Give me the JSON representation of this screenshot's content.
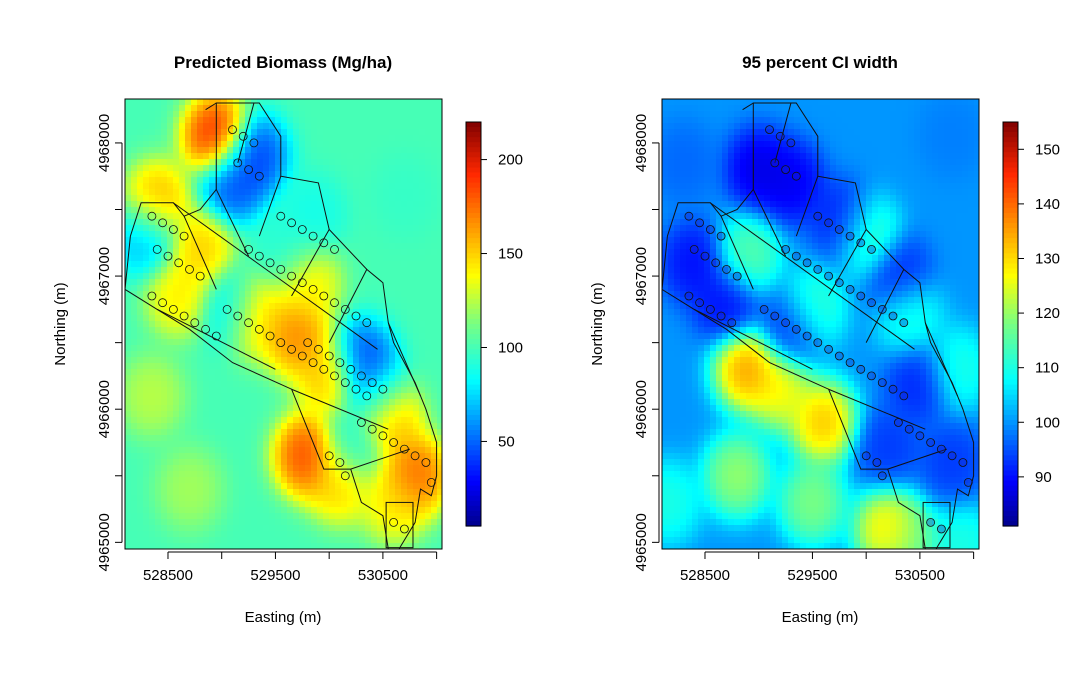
{
  "chart_data": [
    {
      "type": "heatmap",
      "title": "Predicted Biomass (Mg/ha)",
      "xlabel": "Easting (m)",
      "ylabel": "Northing (m)",
      "xlim": [
        528100,
        531050
      ],
      "ylim": [
        4964950,
        4968330
      ],
      "x_ticks": [
        528500,
        529000,
        529500,
        530000,
        530500,
        531000
      ],
      "x_tick_labels": [
        "528500",
        "",
        "529500",
        "",
        "530500",
        ""
      ],
      "y_ticks": [
        4965000,
        4965500,
        4966000,
        4966500,
        4967000,
        4967500,
        4968000
      ],
      "y_tick_labels": [
        "4965000",
        "",
        "4966000",
        "",
        "4967000",
        "",
        "4968000"
      ],
      "colorbar": {
        "range": [
          5,
          220
        ],
        "ticks": [
          50,
          100,
          150,
          200
        ],
        "tick_labels": [
          "50",
          "100",
          "150",
          "200"
        ]
      },
      "background_value": 100,
      "features": [
        {
          "x": 528950,
          "y": 4968050,
          "value": 210
        },
        {
          "x": 529300,
          "y": 4967900,
          "value": 30
        },
        {
          "x": 529100,
          "y": 4967700,
          "value": 35
        },
        {
          "x": 528400,
          "y": 4967550,
          "value": 170
        },
        {
          "x": 528300,
          "y": 4967300,
          "value": 60
        },
        {
          "x": 528800,
          "y": 4967200,
          "value": 160
        },
        {
          "x": 528600,
          "y": 4966850,
          "value": 150
        },
        {
          "x": 529100,
          "y": 4966750,
          "value": 70
        },
        {
          "x": 529300,
          "y": 4966700,
          "value": 165
        },
        {
          "x": 529800,
          "y": 4966950,
          "value": 150
        },
        {
          "x": 529600,
          "y": 4967200,
          "value": 90
        },
        {
          "x": 529850,
          "y": 4967450,
          "value": 85
        },
        {
          "x": 529700,
          "y": 4966550,
          "value": 180
        },
        {
          "x": 530000,
          "y": 4966250,
          "value": 165
        },
        {
          "x": 530300,
          "y": 4966350,
          "value": 30
        },
        {
          "x": 530450,
          "y": 4966100,
          "value": 60
        },
        {
          "x": 529800,
          "y": 4965650,
          "value": 200
        },
        {
          "x": 530550,
          "y": 4965950,
          "value": 180
        },
        {
          "x": 530800,
          "y": 4965500,
          "value": 190
        },
        {
          "x": 530100,
          "y": 4965450,
          "value": 160
        },
        {
          "x": 530200,
          "y": 4965700,
          "value": 85
        },
        {
          "x": 530600,
          "y": 4965300,
          "value": 150
        },
        {
          "x": 528350,
          "y": 4966100,
          "value": 130
        },
        {
          "x": 528700,
          "y": 4965400,
          "value": 125
        },
        {
          "x": 530700,
          "y": 4967600,
          "value": 95
        }
      ],
      "points": [
        [
          528350,
          4967450
        ],
        [
          528450,
          4967400
        ],
        [
          528550,
          4967350
        ],
        [
          528650,
          4967300
        ],
        [
          528400,
          4967200
        ],
        [
          528500,
          4967150
        ],
        [
          528600,
          4967100
        ],
        [
          528700,
          4967050
        ],
        [
          528800,
          4967000
        ],
        [
          528350,
          4966850
        ],
        [
          528450,
          4966800
        ],
        [
          528550,
          4966750
        ],
        [
          528650,
          4966700
        ],
        [
          528750,
          4966650
        ],
        [
          528850,
          4966600
        ],
        [
          528950,
          4966550
        ],
        [
          529050,
          4966750
        ],
        [
          529150,
          4966700
        ],
        [
          529250,
          4966650
        ],
        [
          529350,
          4966600
        ],
        [
          529450,
          4966550
        ],
        [
          529550,
          4966500
        ],
        [
          529650,
          4966450
        ],
        [
          529750,
          4966400
        ],
        [
          529850,
          4966350
        ],
        [
          529950,
          4966300
        ],
        [
          530050,
          4966250
        ],
        [
          530150,
          4966200
        ],
        [
          530250,
          4966150
        ],
        [
          530350,
          4966100
        ],
        [
          529100,
          4968100
        ],
        [
          529200,
          4968050
        ],
        [
          529300,
          4968000
        ],
        [
          529150,
          4967850
        ],
        [
          529250,
          4967800
        ],
        [
          529350,
          4967750
        ],
        [
          529250,
          4967200
        ],
        [
          529350,
          4967150
        ],
        [
          529450,
          4967100
        ],
        [
          529550,
          4967050
        ],
        [
          529650,
          4967000
        ],
        [
          529750,
          4966950
        ],
        [
          529850,
          4966900
        ],
        [
          529950,
          4966850
        ],
        [
          530050,
          4966800
        ],
        [
          530150,
          4966750
        ],
        [
          530250,
          4966700
        ],
        [
          530350,
          4966650
        ],
        [
          529550,
          4967450
        ],
        [
          529650,
          4967400
        ],
        [
          529750,
          4967350
        ],
        [
          529850,
          4967300
        ],
        [
          529950,
          4967250
        ],
        [
          530050,
          4967200
        ],
        [
          529800,
          4966500
        ],
        [
          529900,
          4966450
        ],
        [
          530000,
          4966400
        ],
        [
          530100,
          4966350
        ],
        [
          530200,
          4966300
        ],
        [
          530300,
          4966250
        ],
        [
          530400,
          4966200
        ],
        [
          530500,
          4966150
        ],
        [
          530300,
          4965900
        ],
        [
          530400,
          4965850
        ],
        [
          530500,
          4965800
        ],
        [
          530600,
          4965750
        ],
        [
          530700,
          4965700
        ],
        [
          530800,
          4965650
        ],
        [
          530900,
          4965600
        ],
        [
          530950,
          4965450
        ],
        [
          530000,
          4965650
        ],
        [
          530100,
          4965600
        ],
        [
          530150,
          4965500
        ],
        [
          530600,
          4965150
        ],
        [
          530700,
          4965100
        ]
      ]
    },
    {
      "type": "heatmap",
      "title": "95 percent CI width",
      "xlabel": "Easting (m)",
      "ylabel": "Northing (m)",
      "xlim": [
        528100,
        531050
      ],
      "ylim": [
        4964950,
        4968330
      ],
      "x_ticks": [
        528500,
        529000,
        529500,
        530000,
        530500,
        531000
      ],
      "x_tick_labels": [
        "528500",
        "",
        "529500",
        "",
        "530500",
        ""
      ],
      "y_ticks": [
        4965000,
        4965500,
        4966000,
        4966500,
        4967000,
        4967500,
        4968000
      ],
      "y_tick_labels": [
        "4965000",
        "",
        "4966000",
        "",
        "4967000",
        "",
        "4968000"
      ],
      "colorbar": {
        "range": [
          81,
          155
        ],
        "ticks": [
          90,
          100,
          110,
          120,
          130,
          140,
          150
        ],
        "tick_labels": [
          "90",
          "100",
          "110",
          "120",
          "130",
          "140",
          "150"
        ]
      },
      "background_value": 100,
      "features": [
        {
          "x": 528900,
          "y": 4966300,
          "value": 142
        },
        {
          "x": 529200,
          "y": 4966150,
          "value": 132
        },
        {
          "x": 529600,
          "y": 4965900,
          "value": 138
        },
        {
          "x": 528800,
          "y": 4965500,
          "value": 124
        },
        {
          "x": 529500,
          "y": 4965300,
          "value": 122
        },
        {
          "x": 530200,
          "y": 4965100,
          "value": 134
        },
        {
          "x": 530400,
          "y": 4965000,
          "value": 120
        },
        {
          "x": 528150,
          "y": 4965300,
          "value": 112
        },
        {
          "x": 530900,
          "y": 4964980,
          "value": 112
        },
        {
          "x": 529000,
          "y": 4967800,
          "value": 85
        },
        {
          "x": 529300,
          "y": 4967700,
          "value": 86
        },
        {
          "x": 529800,
          "y": 4967400,
          "value": 88
        },
        {
          "x": 530300,
          "y": 4967000,
          "value": 90
        },
        {
          "x": 528400,
          "y": 4967100,
          "value": 88
        },
        {
          "x": 528700,
          "y": 4966800,
          "value": 88
        },
        {
          "x": 529300,
          "y": 4966600,
          "value": 90
        },
        {
          "x": 530500,
          "y": 4966200,
          "value": 90
        },
        {
          "x": 530200,
          "y": 4965700,
          "value": 92
        },
        {
          "x": 530800,
          "y": 4965600,
          "value": 92
        },
        {
          "x": 528900,
          "y": 4967150,
          "value": 118
        },
        {
          "x": 530000,
          "y": 4967300,
          "value": 118
        },
        {
          "x": 529500,
          "y": 4966750,
          "value": 115
        },
        {
          "x": 530400,
          "y": 4966700,
          "value": 112
        },
        {
          "x": 530850,
          "y": 4966300,
          "value": 112
        },
        {
          "x": 528300,
          "y": 4967850,
          "value": 96
        },
        {
          "x": 530800,
          "y": 4968050,
          "value": 98
        }
      ],
      "points": [
        [
          528350,
          4967450
        ],
        [
          528450,
          4967400
        ],
        [
          528550,
          4967350
        ],
        [
          528650,
          4967300
        ],
        [
          528400,
          4967200
        ],
        [
          528500,
          4967150
        ],
        [
          528600,
          4967100
        ],
        [
          528700,
          4967050
        ],
        [
          528800,
          4967000
        ],
        [
          528350,
          4966850
        ],
        [
          528450,
          4966800
        ],
        [
          528550,
          4966750
        ],
        [
          528650,
          4966700
        ],
        [
          528750,
          4966650
        ],
        [
          529050,
          4966750
        ],
        [
          529150,
          4966700
        ],
        [
          529250,
          4966650
        ],
        [
          529350,
          4966600
        ],
        [
          529450,
          4966550
        ],
        [
          529550,
          4966500
        ],
        [
          529650,
          4966450
        ],
        [
          529750,
          4966400
        ],
        [
          529850,
          4966350
        ],
        [
          529950,
          4966300
        ],
        [
          530050,
          4966250
        ],
        [
          530150,
          4966200
        ],
        [
          530250,
          4966150
        ],
        [
          530350,
          4966100
        ],
        [
          529100,
          4968100
        ],
        [
          529200,
          4968050
        ],
        [
          529300,
          4968000
        ],
        [
          529150,
          4967850
        ],
        [
          529250,
          4967800
        ],
        [
          529350,
          4967750
        ],
        [
          529250,
          4967200
        ],
        [
          529350,
          4967150
        ],
        [
          529450,
          4967100
        ],
        [
          529550,
          4967050
        ],
        [
          529650,
          4967000
        ],
        [
          529750,
          4966950
        ],
        [
          529850,
          4966900
        ],
        [
          529950,
          4966850
        ],
        [
          530050,
          4966800
        ],
        [
          530150,
          4966750
        ],
        [
          530250,
          4966700
        ],
        [
          530350,
          4966650
        ],
        [
          529550,
          4967450
        ],
        [
          529650,
          4967400
        ],
        [
          529750,
          4967350
        ],
        [
          529850,
          4967300
        ],
        [
          529950,
          4967250
        ],
        [
          530050,
          4967200
        ],
        [
          530300,
          4965900
        ],
        [
          530400,
          4965850
        ],
        [
          530500,
          4965800
        ],
        [
          530600,
          4965750
        ],
        [
          530700,
          4965700
        ],
        [
          530800,
          4965650
        ],
        [
          530900,
          4965600
        ],
        [
          530950,
          4965450
        ],
        [
          530000,
          4965650
        ],
        [
          530100,
          4965600
        ],
        [
          530150,
          4965500
        ],
        [
          530600,
          4965150
        ],
        [
          530700,
          4965100
        ]
      ]
    }
  ]
}
